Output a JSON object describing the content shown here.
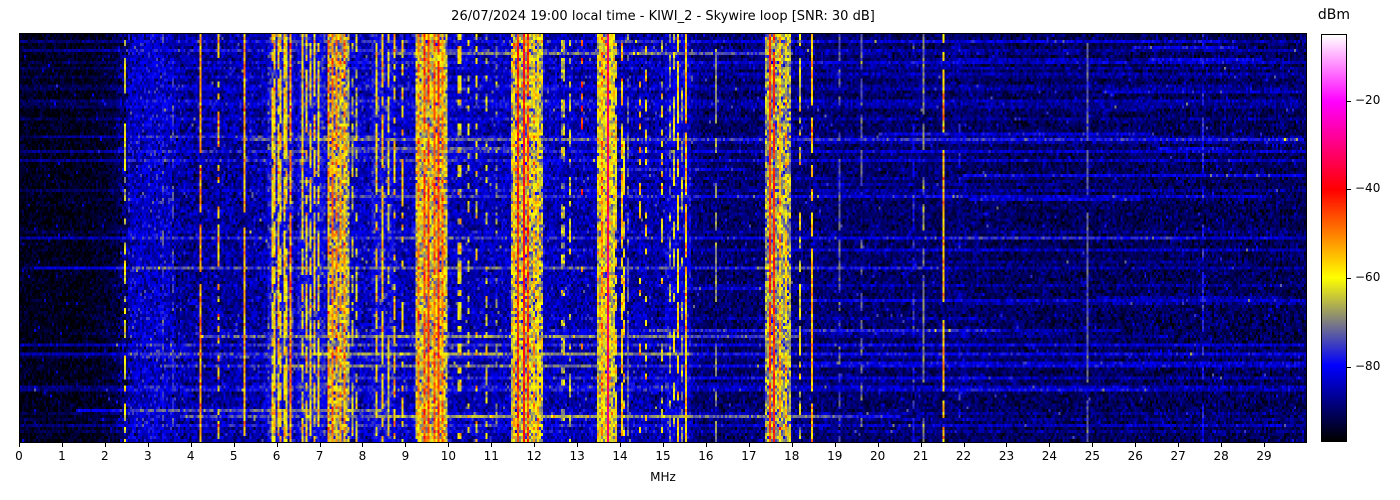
{
  "title": "26/07/2024 19:00 local time - KIWI_2 - Skywire loop [SNR: 30 dB]",
  "chart_data": {
    "type": "heatmap",
    "title": "26/07/2024 19:00 local time - KIWI_2 - Skywire loop [SNR: 30 dB]",
    "xlabel": "MHz",
    "x_range": [
      0,
      30
    ],
    "x_ticks": [
      0,
      1,
      2,
      3,
      4,
      5,
      6,
      7,
      8,
      9,
      10,
      11,
      12,
      13,
      14,
      15,
      16,
      17,
      18,
      19,
      20,
      21,
      22,
      23,
      24,
      25,
      26,
      27,
      28,
      29
    ],
    "y_axis": "time (unlabeled waterfall rows)",
    "colorbar": {
      "label": "dBm",
      "range": [
        -97,
        -5
      ],
      "ticks": [
        {
          "value": -20,
          "label": "−20"
        },
        {
          "value": -40,
          "label": "−40"
        },
        {
          "value": -60,
          "label": "−60"
        },
        {
          "value": -80,
          "label": "−80"
        }
      ]
    },
    "colormap_stops": [
      {
        "v": -97,
        "rgb": [
          0,
          0,
          0
        ]
      },
      {
        "v": -80,
        "rgb": [
          0,
          0,
          255
        ]
      },
      {
        "v": -60,
        "rgb": [
          255,
          255,
          0
        ]
      },
      {
        "v": -40,
        "rgb": [
          255,
          0,
          0
        ]
      },
      {
        "v": -20,
        "rgb": [
          255,
          0,
          255
        ]
      },
      {
        "v": -5,
        "rgb": [
          255,
          255,
          255
        ]
      }
    ],
    "rows": 137,
    "cols": 644,
    "seed": 42,
    "noise_floor_points": [
      [
        0,
        -95
      ],
      [
        1.6,
        -95
      ],
      [
        2.2,
        -93
      ],
      [
        2.6,
        -88
      ],
      [
        3.2,
        -86
      ],
      [
        4.0,
        -87
      ],
      [
        4.9,
        -87
      ],
      [
        5.5,
        -86
      ],
      [
        6.4,
        -85
      ],
      [
        7.4,
        -84
      ],
      [
        8.6,
        -85
      ],
      [
        9.6,
        -84
      ],
      [
        10.5,
        -85
      ],
      [
        11.5,
        -85
      ],
      [
        12.5,
        -85
      ],
      [
        13.5,
        -86
      ],
      [
        14.5,
        -86
      ],
      [
        15.3,
        -87
      ],
      [
        16.0,
        -90
      ],
      [
        17.0,
        -90
      ],
      [
        18.0,
        -89
      ],
      [
        19.0,
        -90
      ],
      [
        21.0,
        -90
      ],
      [
        22.0,
        -90
      ],
      [
        23.5,
        -91
      ],
      [
        25.0,
        -91
      ],
      [
        27.0,
        -91
      ],
      [
        30,
        -91
      ]
    ],
    "noise_sigma": [
      {
        "upto": 2.3,
        "sigma": 2.0
      },
      {
        "upto": 9.9,
        "sigma": 3.8
      },
      {
        "upto": 15.7,
        "sigma": 3.4
      },
      {
        "upto": 30,
        "sigma": 2.8
      }
    ],
    "speck_prob": 0.012,
    "streaks": {
      "count": 70,
      "strong": 8,
      "right": 10
    },
    "bands": [
      {
        "f0": 2.55,
        "f1": 3.45,
        "level": -86,
        "var": 5
      },
      {
        "f0": 5.8,
        "f1": 6.3,
        "level": -80,
        "var": 5
      },
      {
        "f0": 6.5,
        "f1": 7.05,
        "level": -81,
        "var": 5
      },
      {
        "f0": 7.18,
        "f1": 7.62,
        "level": -68,
        "var": 7
      },
      {
        "f0": 8.2,
        "f1": 8.7,
        "level": -82,
        "var": 5
      },
      {
        "f0": 9.25,
        "f1": 9.92,
        "level": -64,
        "var": 7
      },
      {
        "f0": 11.48,
        "f1": 12.12,
        "level": -66,
        "var": 7
      },
      {
        "f0": 13.48,
        "f1": 13.82,
        "level": -63,
        "var": 6
      },
      {
        "f0": 15.05,
        "f1": 15.6,
        "level": -84,
        "var": 4
      },
      {
        "f0": 17.42,
        "f1": 17.92,
        "level": -68,
        "var": 6
      }
    ],
    "lines": [
      {
        "f": 2.45,
        "w": 0.04,
        "level": -63,
        "var": 4,
        "cov": 0.55,
        "dash": 2
      },
      {
        "f": 3.3,
        "w": 0.03,
        "level": -77,
        "var": 3,
        "cov": 0.5,
        "dash": 2
      },
      {
        "f": 3.55,
        "w": 0.03,
        "level": -76,
        "var": 3,
        "cov": 0.5,
        "dash": 3
      },
      {
        "f": 4.2,
        "w": 0.045,
        "level": -52,
        "var": 4,
        "cov": 0.95,
        "dash": 4
      },
      {
        "f": 4.63,
        "w": 0.035,
        "level": -56,
        "var": 5,
        "cov": 0.6,
        "dash": 2
      },
      {
        "f": 5.26,
        "w": 0.05,
        "level": -54,
        "var": 4,
        "cov": 0.95,
        "dash": 5
      },
      {
        "f": 5.88,
        "w": 0.04,
        "level": -59,
        "var": 5,
        "cov": 0.85
      },
      {
        "f": 5.95,
        "w": 0.04,
        "level": -58,
        "var": 5,
        "cov": 0.85
      },
      {
        "f": 6.02,
        "w": 0.04,
        "level": -57,
        "var": 5,
        "cov": 0.85
      },
      {
        "f": 6.08,
        "w": 0.04,
        "level": -59,
        "var": 5,
        "cov": 0.8
      },
      {
        "f": 6.15,
        "w": 0.04,
        "level": -58,
        "var": 5,
        "cov": 0.85
      },
      {
        "f": 6.21,
        "w": 0.04,
        "level": -60,
        "var": 5,
        "cov": 0.8
      },
      {
        "f": 6.31,
        "w": 0.05,
        "level": -50,
        "var": 5,
        "cov": 0.9
      },
      {
        "f": 6.6,
        "w": 0.04,
        "level": -59,
        "var": 5,
        "cov": 0.8
      },
      {
        "f": 6.69,
        "w": 0.04,
        "level": -58,
        "var": 5,
        "cov": 0.8
      },
      {
        "f": 6.78,
        "w": 0.04,
        "level": -60,
        "var": 5,
        "cov": 0.75
      },
      {
        "f": 6.88,
        "w": 0.04,
        "level": -58,
        "var": 5,
        "cov": 0.8
      },
      {
        "f": 6.97,
        "w": 0.04,
        "level": -59,
        "var": 5,
        "cov": 0.8
      },
      {
        "f": 7.21,
        "w": 0.04,
        "level": -53,
        "var": 5,
        "cov": 0.9
      },
      {
        "f": 7.3,
        "w": 0.04,
        "level": -50,
        "var": 5,
        "cov": 0.9
      },
      {
        "f": 7.38,
        "w": 0.04,
        "level": -52,
        "var": 5,
        "cov": 0.9
      },
      {
        "f": 7.46,
        "w": 0.04,
        "level": -54,
        "var": 5,
        "cov": 0.9
      },
      {
        "f": 7.55,
        "w": 0.04,
        "level": -53,
        "var": 5,
        "cov": 0.9
      },
      {
        "f": 7.73,
        "w": 0.04,
        "level": -64,
        "var": 5,
        "cov": 0.6
      },
      {
        "f": 7.85,
        "w": 0.04,
        "level": -64,
        "var": 5,
        "cov": 0.6
      },
      {
        "f": 8.33,
        "w": 0.04,
        "level": -58,
        "var": 5,
        "cov": 0.8
      },
      {
        "f": 8.47,
        "w": 0.04,
        "level": -57,
        "var": 5,
        "cov": 0.85
      },
      {
        "f": 8.57,
        "w": 0.04,
        "level": -62,
        "var": 5,
        "cov": 0.6
      },
      {
        "f": 8.72,
        "w": 0.05,
        "level": -56,
        "var": 5,
        "cov": 0.5,
        "dash": 2
      },
      {
        "f": 8.92,
        "w": 0.05,
        "level": -58,
        "var": 5,
        "cov": 0.45,
        "dash": 2
      },
      {
        "f": 9.3,
        "w": 0.04,
        "level": -52,
        "var": 5,
        "cov": 0.95
      },
      {
        "f": 9.41,
        "w": 0.04,
        "level": -46,
        "var": 4,
        "cov": 0.95
      },
      {
        "f": 9.53,
        "w": 0.04,
        "level": -45,
        "var": 4,
        "cov": 0.95
      },
      {
        "f": 9.64,
        "w": 0.04,
        "level": -48,
        "var": 4,
        "cov": 0.95
      },
      {
        "f": 9.75,
        "w": 0.04,
        "level": -44,
        "var": 4,
        "cov": 0.95
      },
      {
        "f": 9.86,
        "w": 0.04,
        "level": -50,
        "var": 5,
        "cov": 0.9
      },
      {
        "f": 10.25,
        "w": 0.05,
        "level": -61,
        "var": 5,
        "cov": 0.4,
        "dash": 2
      },
      {
        "f": 10.45,
        "w": 0.05,
        "level": -62,
        "var": 5,
        "cov": 0.35,
        "dash": 2
      },
      {
        "f": 10.65,
        "w": 0.05,
        "level": -60,
        "var": 5,
        "cov": 0.4,
        "dash": 2
      },
      {
        "f": 10.88,
        "w": 0.05,
        "level": -63,
        "var": 5,
        "cov": 0.35,
        "dash": 2
      },
      {
        "f": 11.09,
        "w": 0.04,
        "level": -70,
        "var": 4,
        "cov": 0.4,
        "dash": 2
      },
      {
        "f": 11.53,
        "w": 0.04,
        "level": -56,
        "var": 5,
        "cov": 0.9
      },
      {
        "f": 11.62,
        "w": 0.04,
        "level": -43,
        "var": 3,
        "cov": 0.97
      },
      {
        "f": 11.74,
        "w": 0.045,
        "level": -41,
        "var": 3,
        "cov": 0.97
      },
      {
        "f": 11.87,
        "w": 0.04,
        "level": -45,
        "var": 4,
        "cov": 0.95
      },
      {
        "f": 11.98,
        "w": 0.04,
        "level": -55,
        "var": 5,
        "cov": 0.9
      },
      {
        "f": 12.07,
        "w": 0.04,
        "level": -57,
        "var": 5,
        "cov": 0.85
      },
      {
        "f": 12.67,
        "w": 0.05,
        "level": -66,
        "var": 5,
        "cov": 0.45,
        "dash": 2
      },
      {
        "f": 12.82,
        "w": 0.05,
        "level": -64,
        "var": 5,
        "cov": 0.4,
        "dash": 2
      },
      {
        "f": 13.12,
        "w": 0.04,
        "level": -47,
        "var": 4,
        "cov": 0.22,
        "dash": 2
      },
      {
        "f": 13.57,
        "w": 0.04,
        "level": -52,
        "var": 5,
        "cov": 0.8
      },
      {
        "f": 13.7,
        "w": 0.05,
        "level": -33,
        "var": 3,
        "cov": 1,
        "dash": 8
      },
      {
        "f": 13.92,
        "w": 0.04,
        "level": -58,
        "var": 5,
        "cov": 0.7
      },
      {
        "f": 14.02,
        "w": 0.04,
        "level": -57,
        "var": 5,
        "cov": 0.75
      },
      {
        "f": 14.08,
        "w": 0.04,
        "level": -60,
        "var": 5,
        "cov": 0.6
      },
      {
        "f": 14.16,
        "w": 0.03,
        "level": -72,
        "var": 3,
        "cov": 0.6
      },
      {
        "f": 14.45,
        "w": 0.05,
        "level": -56,
        "var": 5,
        "cov": 0.4,
        "dash": 2
      },
      {
        "f": 14.6,
        "w": 0.05,
        "level": -58,
        "var": 5,
        "cov": 0.35,
        "dash": 2
      },
      {
        "f": 14.97,
        "w": 0.04,
        "level": -60,
        "var": 5,
        "cov": 0.45,
        "dash": 2
      },
      {
        "f": 15.15,
        "w": 0.03,
        "level": -70,
        "var": 4,
        "cov": 0.6
      },
      {
        "f": 15.25,
        "w": 0.03,
        "level": -63,
        "var": 4,
        "cov": 0.55
      },
      {
        "f": 15.35,
        "w": 0.04,
        "level": -59,
        "var": 4,
        "cov": 0.7
      },
      {
        "f": 15.45,
        "w": 0.03,
        "level": -68,
        "var": 4,
        "cov": 0.5
      },
      {
        "f": 15.55,
        "w": 0.04,
        "level": -55,
        "var": 4,
        "cov": 0.9
      },
      {
        "f": 16.22,
        "w": 0.05,
        "level": -69,
        "var": 2,
        "cov": 0.6,
        "dash": 5
      },
      {
        "f": 17.49,
        "w": 0.04,
        "level": -44,
        "var": 3,
        "cov": 0.97
      },
      {
        "f": 17.6,
        "w": 0.045,
        "level": -43,
        "var": 3,
        "cov": 0.97
      },
      {
        "f": 17.71,
        "w": 0.04,
        "level": -54,
        "var": 5,
        "cov": 0.8
      },
      {
        "f": 17.84,
        "w": 0.04,
        "level": -56,
        "var": 5,
        "cov": 0.7
      },
      {
        "f": 18.18,
        "w": 0.05,
        "level": -62,
        "var": 5,
        "cov": 0.5,
        "dash": 2
      },
      {
        "f": 18.46,
        "w": 0.05,
        "level": -54,
        "var": 4,
        "cov": 0.85,
        "dash": 4
      },
      {
        "f": 19.12,
        "w": 0.03,
        "level": -73,
        "var": 3,
        "cov": 0.7
      },
      {
        "f": 19.62,
        "w": 0.03,
        "level": -72,
        "var": 3,
        "cov": 0.6
      },
      {
        "f": 20.82,
        "w": 0.03,
        "level": -78,
        "var": 3,
        "cov": 0.5
      },
      {
        "f": 21.06,
        "w": 0.03,
        "level": -70,
        "var": 3,
        "cov": 0.7
      },
      {
        "f": 21.52,
        "w": 0.04,
        "level": -55,
        "var": 4,
        "cov": 0.9
      },
      {
        "f": 21.9,
        "w": 0.03,
        "level": -80,
        "var": 3,
        "cov": 0.4
      },
      {
        "f": 24.88,
        "w": 0.03,
        "level": -73,
        "var": 2,
        "cov": 0.85
      },
      {
        "f": 27.58,
        "w": 0.03,
        "level": -79,
        "var": 3,
        "cov": 0.5,
        "dash": 4
      }
    ]
  }
}
